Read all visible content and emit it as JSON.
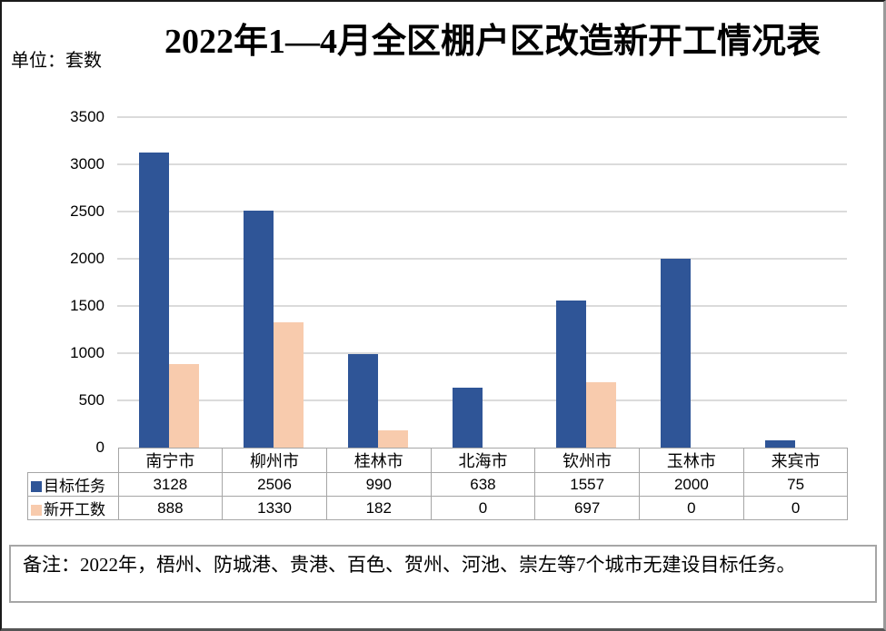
{
  "page": {
    "title": "2022年1—4月全区棚户区改造新开工情况表",
    "unit_label": "单位：套数",
    "note": "备注：2022年，梧州、防城港、贵港、百色、贺州、河池、崇左等7个城市无建设目标任务。"
  },
  "colors": {
    "target_series": "#2F5597",
    "started_series": "#F8CBAD",
    "gridline": "#DBDBDB",
    "table_border": "#A6A6A6"
  },
  "chart_data": {
    "type": "bar",
    "title": "2022年1—4月全区棚户区改造新开工情况表",
    "ylabel": "单位：套数",
    "categories": [
      "南宁市",
      "柳州市",
      "桂林市",
      "北海市",
      "钦州市",
      "玉林市",
      "来宾市"
    ],
    "series": [
      {
        "name": "目标任务",
        "color": "#2F5597",
        "values": [
          3128,
          2506,
          990,
          638,
          1557,
          2000,
          75
        ]
      },
      {
        "name": "新开工数",
        "color": "#F8CBAD",
        "values": [
          888,
          1330,
          182,
          0,
          697,
          0,
          0
        ]
      }
    ],
    "ylim": [
      0,
      3500
    ],
    "ytick_step": 500,
    "grid": true,
    "legend_position": "data-table-left"
  }
}
